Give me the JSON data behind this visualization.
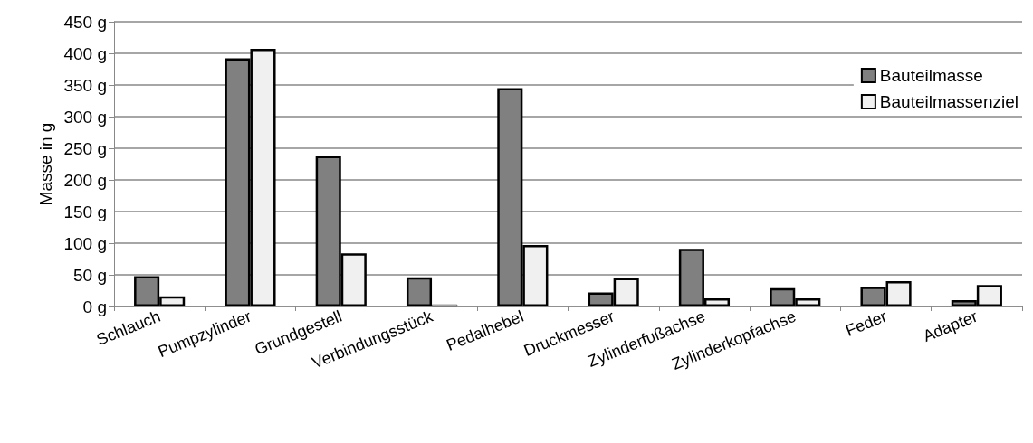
{
  "chart_data": {
    "type": "bar",
    "ylabel": "Masse in g",
    "categories": [
      "Schlauch",
      "Pumpzylinder",
      "Grundgestell",
      "Verbindungsstück",
      "Pedalhebel",
      "Druckmesser",
      "Zylinderfußachse",
      "Zylinderkopfachse",
      "Feder",
      "Adapter"
    ],
    "series": [
      {
        "name": "Bauteilmasse",
        "color": "#808080",
        "values": [
          48,
          392,
          238,
          46,
          345,
          22,
          91,
          29,
          31,
          10
        ]
      },
      {
        "name": "Bauteilmassenziel",
        "color": "#f0f0f0",
        "values": [
          16,
          407,
          84,
          3,
          97,
          45,
          13,
          13,
          40,
          34
        ]
      }
    ],
    "ylim": [
      0,
      450
    ],
    "yticks": [
      {
        "value": 0,
        "label": "0 g"
      },
      {
        "value": 50,
        "label": "50 g"
      },
      {
        "value": 100,
        "label": "100 g"
      },
      {
        "value": 150,
        "label": "150 g"
      },
      {
        "value": 200,
        "label": "200 g"
      },
      {
        "value": 250,
        "label": "250 g"
      },
      {
        "value": 300,
        "label": "300 g"
      },
      {
        "value": 350,
        "label": "350 g"
      },
      {
        "value": 400,
        "label": "400 g"
      },
      {
        "value": 450,
        "label": "450 g"
      }
    ],
    "grid": true,
    "legend": "top right"
  }
}
